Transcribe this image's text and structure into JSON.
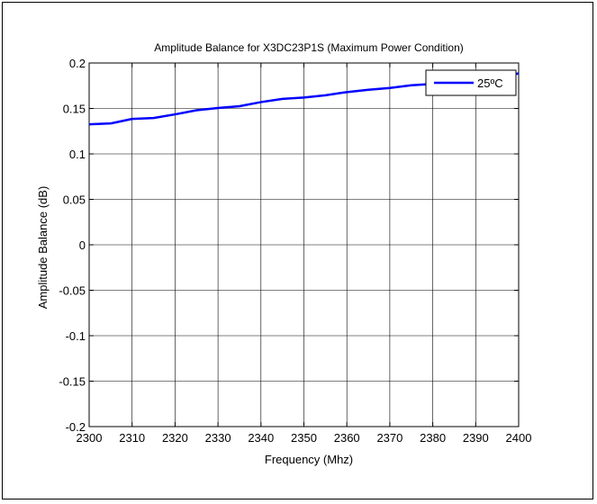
{
  "chart_data": {
    "type": "line",
    "title": "Amplitude Balance for X3DC23P1S (Maximum Power Condition)",
    "xlabel": "Frequency (Mhz)",
    "ylabel": "Amplitude Balance (dB)",
    "xlim": [
      2300,
      2400
    ],
    "ylim": [
      -0.2,
      0.2
    ],
    "x_ticks": [
      2300,
      2310,
      2320,
      2330,
      2340,
      2350,
      2360,
      2370,
      2380,
      2390,
      2400
    ],
    "y_ticks": [
      -0.2,
      -0.15,
      -0.1,
      -0.05,
      0,
      0.05,
      0.1,
      0.15,
      0.2
    ],
    "y_tick_labels": [
      "-0.2",
      "-0.15",
      "-0.1",
      "-0.05",
      "0",
      "0.05",
      "0.1",
      "0.15",
      "0.2"
    ],
    "grid": true,
    "legend_position": "top-right",
    "series": [
      {
        "name": "25ºC",
        "color": "#0000ff",
        "x": [
          2300,
          2305,
          2310,
          2315,
          2320,
          2325,
          2330,
          2335,
          2340,
          2345,
          2350,
          2355,
          2360,
          2365,
          2370,
          2375,
          2380,
          2385,
          2390,
          2395,
          2400
        ],
        "y": [
          0.1325,
          0.1335,
          0.1385,
          0.1395,
          0.1435,
          0.148,
          0.1505,
          0.1525,
          0.157,
          0.1605,
          0.162,
          0.1645,
          0.168,
          0.1705,
          0.1725,
          0.1755,
          0.177,
          0.1795,
          0.1825,
          0.185,
          0.1885
        ]
      }
    ]
  }
}
